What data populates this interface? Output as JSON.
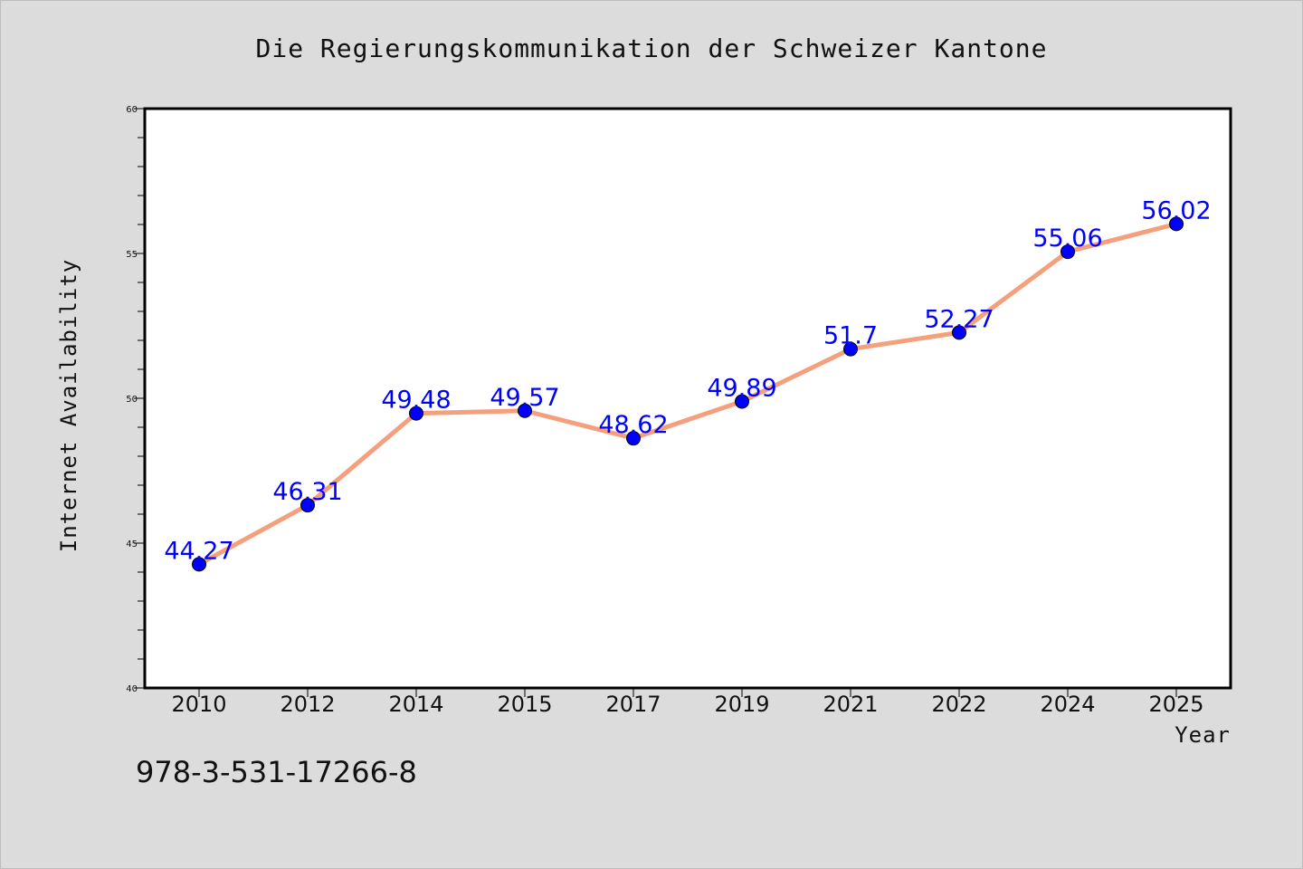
{
  "chart_data": {
    "type": "line",
    "title": "Die Regierungskommunikation der Schweizer Kantone",
    "xlabel": "Year",
    "ylabel": "Internet Availability",
    "categories": [
      "2010",
      "2012",
      "2014",
      "2015",
      "2017",
      "2019",
      "2021",
      "2022",
      "2024",
      "2025"
    ],
    "series": [
      {
        "values": [
          44.27,
          46.31,
          49.48,
          49.57,
          48.62,
          49.89,
          51.7,
          52.27,
          55.06,
          56.02
        ],
        "labels": [
          "44.27",
          "46.31",
          "49.48",
          "49.57",
          "48.62",
          "49.89",
          "51.7",
          "52.27",
          "55.06",
          "56.02"
        ]
      }
    ],
    "ylim": [
      40,
      60
    ],
    "yticks": [
      "40",
      "45",
      "50",
      "55",
      "60"
    ],
    "grid": false,
    "legend": "none",
    "colors": {
      "line": "#f4a07c",
      "marker": "#0000ff",
      "data_label": "#0000ff",
      "background": "#dcdcdc",
      "plot_background": "#ffffff"
    }
  },
  "footer": {
    "isbn": "978-3-531-17266-8"
  }
}
